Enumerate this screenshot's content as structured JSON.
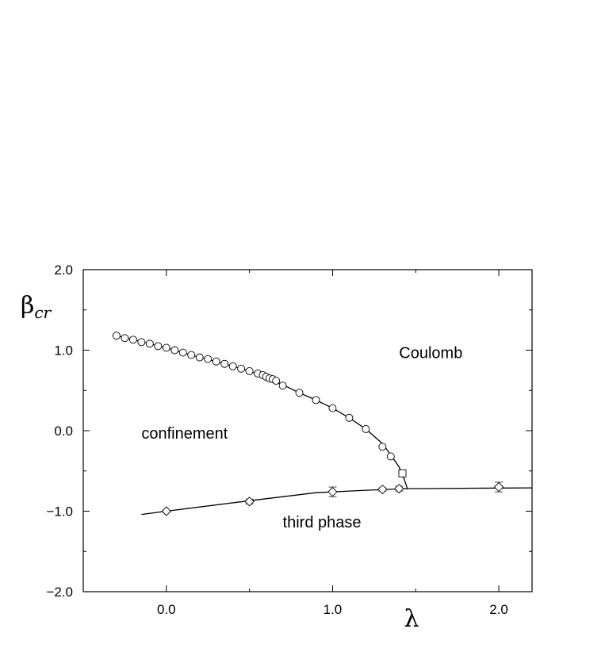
{
  "chart_data": {
    "type": "scatter",
    "ylabel": {
      "symbol": "β",
      "subscript": "cr"
    },
    "xlabel": "λ",
    "xlim": [
      -0.5,
      2.2
    ],
    "ylim": [
      -2.0,
      2.0
    ],
    "grid": false,
    "legend": "none",
    "x_ticks": [
      0.0,
      1.0,
      2.0
    ],
    "x_tick_labels": [
      "0.0",
      "1.0",
      "2.0"
    ],
    "y_ticks": [
      2.0,
      1.0,
      0.0,
      -1.0,
      -2.0
    ],
    "y_tick_labels": [
      "2.0",
      "1.0",
      "0.0",
      "−1.0",
      "−2.0"
    ],
    "annotations": [
      {
        "text": "Coulomb",
        "x": 1.4,
        "y": 0.9
      },
      {
        "text": "confinement",
        "x": -0.15,
        "y": -0.1
      },
      {
        "text": "third phase",
        "x": 0.7,
        "y": -1.2
      }
    ],
    "series": [
      {
        "marker": "circle",
        "points": [
          [
            -0.3,
            1.18
          ],
          [
            -0.25,
            1.15
          ],
          [
            -0.2,
            1.13
          ],
          [
            -0.15,
            1.1
          ],
          [
            -0.1,
            1.08
          ],
          [
            -0.05,
            1.05
          ],
          [
            0.0,
            1.03
          ],
          [
            0.05,
            1.0
          ],
          [
            0.1,
            0.97
          ],
          [
            0.15,
            0.94
          ],
          [
            0.2,
            0.91
          ],
          [
            0.25,
            0.89
          ],
          [
            0.3,
            0.86
          ],
          [
            0.35,
            0.83
          ],
          [
            0.4,
            0.8
          ],
          [
            0.45,
            0.77
          ],
          [
            0.5,
            0.74
          ],
          [
            0.55,
            0.71
          ],
          [
            0.58,
            0.69
          ],
          [
            0.6,
            0.67
          ],
          [
            0.62,
            0.65
          ],
          [
            0.64,
            0.64
          ],
          [
            0.66,
            0.62
          ],
          [
            0.7,
            0.56
          ],
          [
            0.8,
            0.47
          ],
          [
            0.9,
            0.38
          ],
          [
            1.0,
            0.28
          ],
          [
            1.1,
            0.16
          ],
          [
            1.2,
            0.02
          ],
          [
            1.3,
            -0.2
          ],
          [
            1.35,
            -0.32
          ]
        ],
        "errors": []
      },
      {
        "marker": "square",
        "points": [
          [
            1.42,
            -0.53
          ]
        ],
        "errors": []
      },
      {
        "marker": "diamond",
        "points": [
          [
            0.0,
            -1.0
          ],
          [
            0.5,
            -0.88
          ],
          [
            1.0,
            -0.76
          ],
          [
            1.3,
            -0.73
          ],
          [
            1.4,
            -0.72
          ],
          [
            2.0,
            -0.7
          ]
        ],
        "errors": [
          0.01,
          0.03,
          0.06,
          0.02,
          0.03,
          0.06
        ]
      }
    ],
    "curves": [
      {
        "name": "upper transition line",
        "x": [
          -0.3,
          -0.2,
          -0.1,
          0.0,
          0.1,
          0.2,
          0.3,
          0.4,
          0.5,
          0.6,
          0.7,
          0.8,
          0.9,
          1.0,
          1.1,
          1.2,
          1.3,
          1.35,
          1.4,
          1.43,
          1.45
        ],
        "y": [
          1.18,
          1.13,
          1.08,
          1.03,
          0.97,
          0.91,
          0.86,
          0.8,
          0.74,
          0.66,
          0.57,
          0.47,
          0.38,
          0.28,
          0.16,
          0.02,
          -0.16,
          -0.3,
          -0.45,
          -0.6,
          -0.72
        ]
      },
      {
        "name": "lower transition line",
        "x": [
          -0.15,
          0.0,
          0.5,
          0.9,
          1.2,
          1.45,
          2.2
        ],
        "y": [
          -1.04,
          -1.0,
          -0.87,
          -0.77,
          -0.74,
          -0.72,
          -0.71
        ]
      }
    ]
  }
}
